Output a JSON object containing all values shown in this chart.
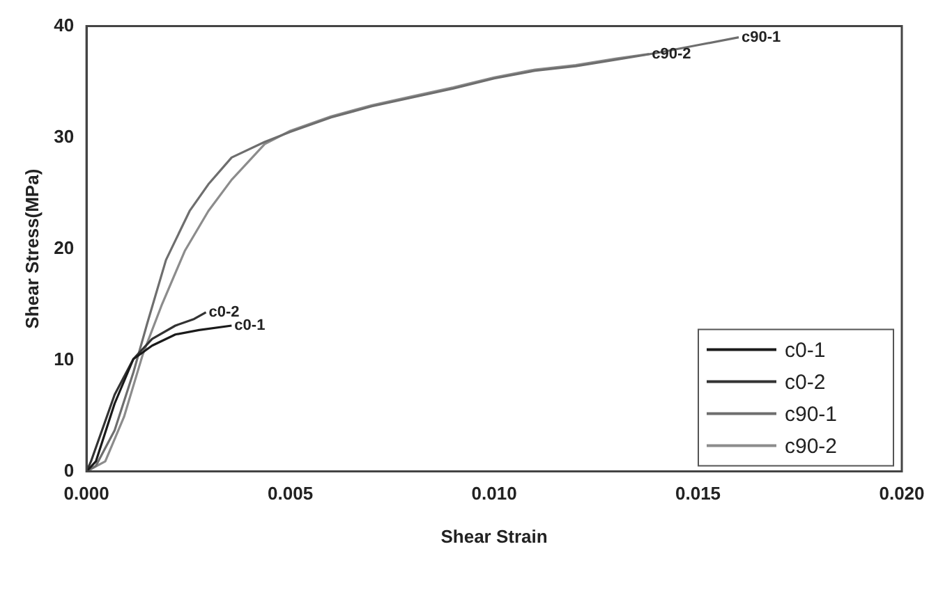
{
  "chart_data": {
    "type": "line",
    "xlabel": "Shear Strain",
    "ylabel": "Shear Stress(MPa)",
    "xlim": [
      0,
      0.02
    ],
    "ylim": [
      0,
      40
    ],
    "xticks": [
      {
        "value": 0,
        "label": "0.000"
      },
      {
        "value": 0.005,
        "label": "0.005"
      },
      {
        "value": 0.01,
        "label": "0.010"
      },
      {
        "value": 0.015,
        "label": "0.015"
      },
      {
        "value": 0.02,
        "label": "0.020"
      }
    ],
    "yticks": [
      0,
      10,
      20,
      30,
      40
    ],
    "grid": false,
    "legend": "bottom right",
    "marker": "none",
    "line_style": "solid",
    "series": [
      {
        "name": "c0-1",
        "color": "#1a1a1a",
        "x": [
          0,
          0.00023,
          0.00069,
          0.00115,
          0.00161,
          0.00218,
          0.00276,
          0.00356
        ],
        "values": [
          0,
          0.9,
          6.1,
          10.1,
          11.3,
          12.3,
          12.7,
          13.1
        ]
      },
      {
        "name": "c0-2",
        "color": "#333333",
        "x": [
          0,
          0.00011,
          0.00069,
          0.00115,
          0.00161,
          0.00218,
          0.00264,
          0.00293
        ],
        "values": [
          0,
          0.9,
          6.9,
          10.1,
          11.9,
          13.1,
          13.7,
          14.3
        ]
      },
      {
        "name": "c90-1",
        "color": "#6e6e6e",
        "x": [
          0,
          0.00023,
          0.00069,
          0.00115,
          0.00149,
          0.00195,
          0.00253,
          0.00299,
          0.00356,
          0.00437,
          0.005,
          0.006,
          0.007,
          0.008,
          0.009,
          0.01,
          0.011,
          0.012,
          0.013,
          0.014,
          0.015,
          0.016
        ],
        "values": [
          0,
          0.5,
          3.7,
          8.9,
          13.3,
          19,
          23.4,
          25.8,
          28.2,
          29.6,
          30.5,
          31.8,
          32.8,
          33.6,
          34.4,
          35.3,
          36,
          36.4,
          37,
          37.6,
          38.3,
          39
        ]
      },
      {
        "name": "c90-2",
        "color": "#8c8c8c",
        "x": [
          0,
          0.00046,
          0.00092,
          0.00138,
          0.00184,
          0.00241,
          0.00299,
          0.00356,
          0.00437,
          0.005,
          0.006,
          0.007,
          0.008,
          0.009,
          0.01,
          0.011,
          0.012,
          0.013,
          0.0138
        ],
        "values": [
          0,
          0.9,
          4.9,
          10.5,
          14.9,
          19.8,
          23.4,
          26.2,
          29.4,
          30.6,
          31.9,
          32.9,
          33.7,
          34.5,
          35.4,
          36.1,
          36.5,
          37.1,
          37.5
        ]
      }
    ],
    "annotations": [
      {
        "text": "c0-2",
        "x": 0.00293,
        "y": 14.3
      },
      {
        "text": "c0-1",
        "x": 0.00356,
        "y": 13.1
      },
      {
        "text": "c90-1",
        "x": 0.016,
        "y": 39
      },
      {
        "text": "c90-2",
        "x": 0.0138,
        "y": 37.5
      }
    ]
  }
}
